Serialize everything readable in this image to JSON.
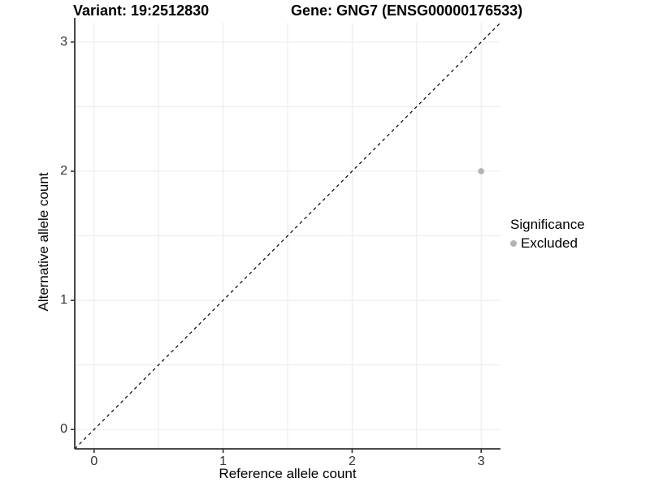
{
  "titles": {
    "variant": "Variant: 19:2512830",
    "gene": "Gene: GNG7 (ENSG00000176533)"
  },
  "chart_data": {
    "type": "scatter",
    "xlabel": "Reference allele count",
    "ylabel": "Alternative allele count",
    "xlim": [
      -0.15,
      3.15
    ],
    "ylim": [
      -0.15,
      3.15
    ],
    "x_ticks": [
      0,
      1,
      2,
      3
    ],
    "y_ticks": [
      0,
      1,
      2,
      3
    ],
    "grid": true,
    "grid_step": 0.5,
    "points": [
      {
        "x": 3,
        "y": 2,
        "series": "Excluded"
      }
    ],
    "reference_line": {
      "kind": "identity",
      "style": "dashed"
    },
    "legend": {
      "position": "right",
      "title": "Significance",
      "items": [
        {
          "label": "Excluded",
          "color": "#b3b3b3"
        }
      ]
    }
  },
  "colors": {
    "background": "#ffffff",
    "gridline": "#ebebeb",
    "axis_line": "#333333",
    "tick_mark": "#333333",
    "tick_text": "#333333",
    "title_text": "#000000",
    "point": "#b3b3b3",
    "dashed_line": "#000000"
  }
}
